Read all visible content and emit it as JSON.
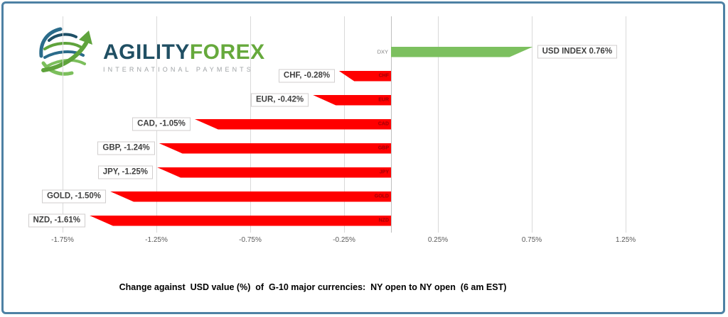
{
  "frame": {
    "border_color": "#4e81a4"
  },
  "logo": {
    "brand_primary": "AGILITY",
    "brand_secondary": "FOREX",
    "tagline": "INTERNATIONAL PAYMENTS",
    "colors": {
      "primary": "#204f63",
      "secondary": "#66a93c",
      "tagline": "#9fa3a6"
    }
  },
  "chart_data": {
    "type": "bar",
    "orientation": "horizontal",
    "title": "Change against  USD value (%)  of  G-10 major currencies:  NY open to NY open  (6 am EST)",
    "categories": [
      "DXY",
      "CHF",
      "EUR",
      "CAD",
      "GBP",
      "JPY",
      "GOLD",
      "NZD"
    ],
    "values": [
      0.76,
      -0.28,
      -0.42,
      -1.05,
      -1.24,
      -1.25,
      -1.5,
      -1.61
    ],
    "bar_labels": [
      "USD INDEX 0.76%",
      "CHF, -0.28%",
      "EUR, -0.42%",
      "CAD, -1.05%",
      "GBP, -1.24%",
      "JPY, -1.25%",
      "GOLD, -1.50%",
      "NZD, -1.61%"
    ],
    "x_ticks": [
      "-1.75%",
      "-1.25%",
      "-0.75%",
      "-0.25%",
      "0.25%",
      "0.75%",
      "1.25%"
    ],
    "x_tick_values": [
      -1.75,
      -1.25,
      -0.75,
      -0.25,
      0.25,
      0.75,
      1.25
    ],
    "xlim": [
      -1.75,
      1.25
    ],
    "grid": true,
    "legend": false,
    "positive_color": "#7cc05f",
    "negative_color": "#ff0000",
    "negative_onbar_label_color": "#9c0006",
    "axis_label_color": "#595959"
  }
}
